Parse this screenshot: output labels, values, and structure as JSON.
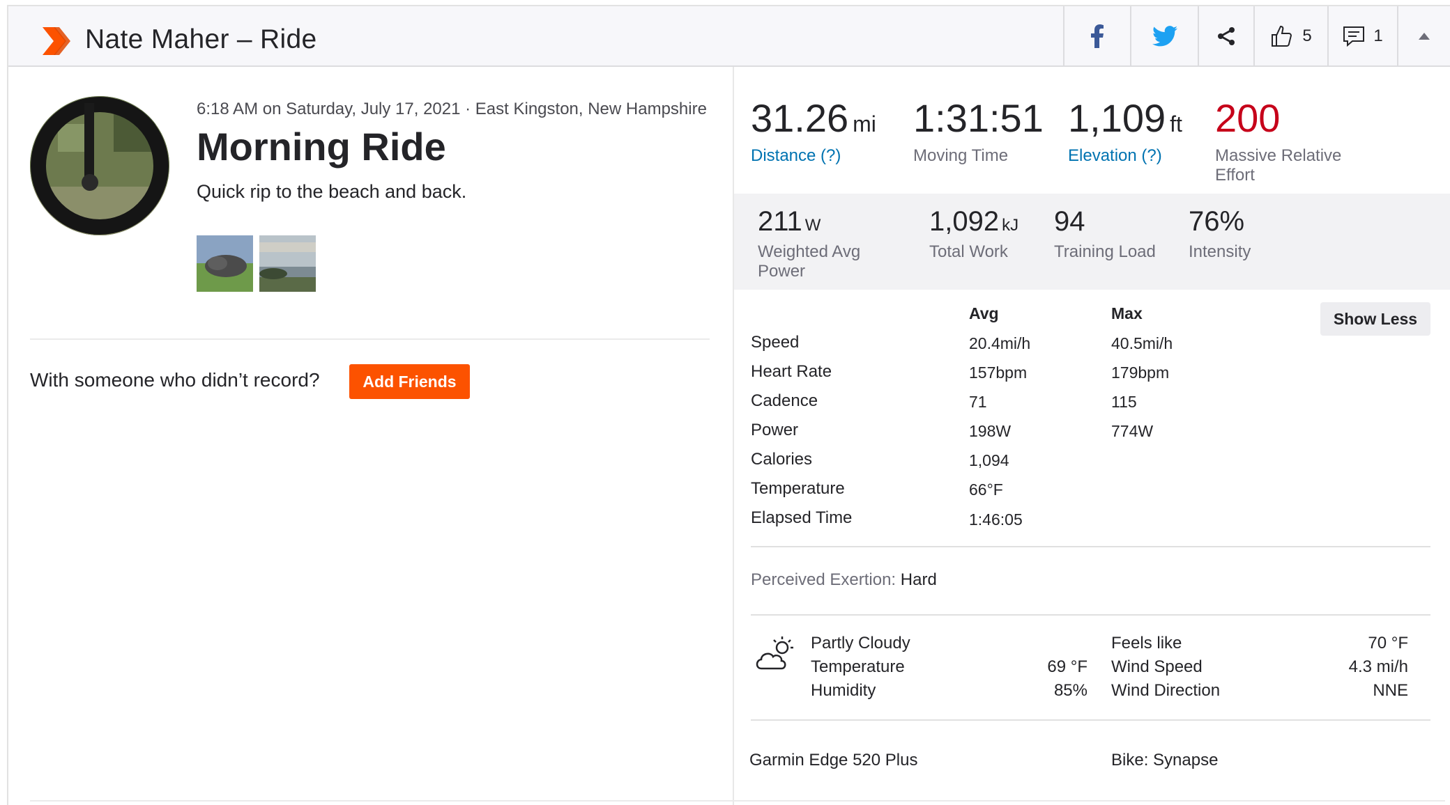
{
  "header": {
    "title": "Nate Maher – Ride",
    "kudos_count": "5",
    "comment_count": "1",
    "brand_color": "#fc5200"
  },
  "activity": {
    "meta": "6:18 AM on Saturday, July 17, 2021 · East Kingston, New Hampshire",
    "name": "Morning Ride",
    "description": "Quick rip to the beach and back."
  },
  "friends": {
    "prompt": "With someone who didn’t record?",
    "button": "Add Friends"
  },
  "primary_stats": [
    {
      "value": "31.26",
      "unit": "mi",
      "label": "Distance (?)"
    },
    {
      "value": "1:31:51",
      "unit": "",
      "label": "Moving Time"
    },
    {
      "value": "1,109",
      "unit": "ft",
      "label": "Elevation (?)"
    },
    {
      "value": "200",
      "unit": "",
      "label": "Massive Relative Effort"
    }
  ],
  "secondary_stats": [
    {
      "value": "211",
      "unit": "W",
      "label": "Weighted Avg Power"
    },
    {
      "value": "1,092",
      "unit": "kJ",
      "label": "Total Work"
    },
    {
      "value": "94",
      "unit": "",
      "label": "Training Load"
    },
    {
      "value": "76%",
      "unit": "",
      "label": "Intensity"
    }
  ],
  "details": {
    "avg_header": "Avg",
    "max_header": "Max",
    "show_less": "Show Less",
    "rows": [
      {
        "label": "Speed",
        "avg": "20.4mi/h",
        "max": "40.5mi/h"
      },
      {
        "label": "Heart Rate",
        "avg": "157bpm",
        "max": "179bpm"
      },
      {
        "label": "Cadence",
        "avg": "71",
        "max": "115"
      },
      {
        "label": "Power",
        "avg": "198W",
        "max": "774W"
      },
      {
        "label": "Calories",
        "avg": "1,094",
        "max": ""
      },
      {
        "label": "Temperature",
        "avg": "66°F",
        "max": ""
      },
      {
        "label": "Elapsed Time",
        "avg": "1:46:05",
        "max": ""
      }
    ]
  },
  "exertion": {
    "label": "Perceived Exertion:",
    "value": "Hard"
  },
  "weather": {
    "icon": "partly-cloudy-icon",
    "condition": "Partly Cloudy",
    "temperature_label": "Temperature",
    "temperature": "69 °F",
    "humidity_label": "Humidity",
    "humidity": "85%",
    "feels_like_label": "Feels like",
    "feels_like": "70 °F",
    "wind_speed_label": "Wind Speed",
    "wind_speed": "4.3 mi/h",
    "wind_direction_label": "Wind Direction",
    "wind_direction": "NNE"
  },
  "gear": {
    "device": "Garmin Edge 520 Plus",
    "bike": "Bike: Synapse"
  }
}
